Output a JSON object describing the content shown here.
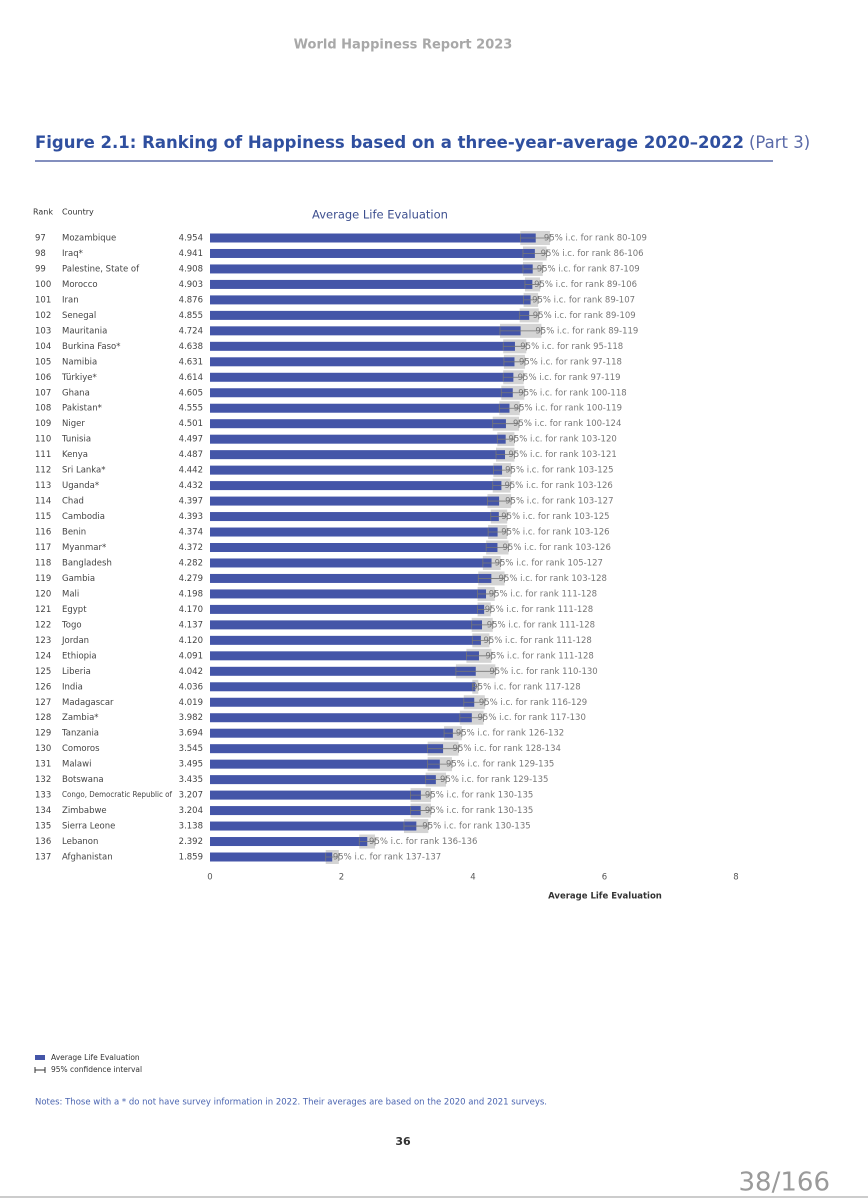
{
  "header": {
    "title": "World Happiness Report 2023"
  },
  "figure": {
    "title": "Figure 2.1: Ranking of Happiness based on a three-year-average 2020–2022",
    "part": "(Part 3)",
    "rank_header": "Rank",
    "country_header": "Country"
  },
  "chart_data": {
    "type": "bar",
    "orientation": "horizontal",
    "title": "Average Life Evaluation",
    "xlabel": "Average Life Evaluation",
    "ranks": [
      97,
      98,
      99,
      100,
      101,
      102,
      103,
      104,
      105,
      106,
      107,
      108,
      109,
      110,
      111,
      112,
      113,
      114,
      115,
      116,
      117,
      118,
      119,
      120,
      121,
      122,
      123,
      124,
      125,
      126,
      127,
      128,
      129,
      130,
      131,
      132,
      133,
      134,
      135,
      136,
      137
    ],
    "categories": [
      "Mozambique",
      "Iraq*",
      "Palestine, State of",
      "Morocco",
      "Iran",
      "Senegal",
      "Mauritania",
      "Burkina Faso*",
      "Namibia",
      "Türkiye*",
      "Ghana",
      "Pakistan*",
      "Niger",
      "Tunisia",
      "Kenya",
      "Sri Lanka*",
      "Uganda*",
      "Chad",
      "Cambodia",
      "Benin",
      "Myanmar*",
      "Bangladesh",
      "Gambia",
      "Mali",
      "Egypt",
      "Togo",
      "Jordan",
      "Ethiopia",
      "Liberia",
      "India",
      "Madagascar",
      "Zambia*",
      "Tanzania",
      "Comoros",
      "Malawi",
      "Botswana",
      "Congo, Democratic Republic of",
      "Zimbabwe",
      "Sierra Leone",
      "Lebanon",
      "Afghanistan"
    ],
    "values": [
      4.954,
      4.941,
      4.908,
      4.903,
      4.876,
      4.855,
      4.724,
      4.638,
      4.631,
      4.614,
      4.605,
      4.555,
      4.501,
      4.497,
      4.487,
      4.442,
      4.432,
      4.397,
      4.393,
      4.374,
      4.372,
      4.282,
      4.279,
      4.198,
      4.17,
      4.137,
      4.12,
      4.091,
      4.042,
      4.036,
      4.019,
      3.982,
      3.694,
      3.545,
      3.495,
      3.435,
      3.207,
      3.204,
      3.138,
      2.392,
      1.859
    ],
    "value_labels": [
      "4.954",
      "4.941",
      "4.908",
      "4.903",
      "4.876",
      "4.855",
      "4.724",
      "4.638",
      "4.631",
      "4.614",
      "4.605",
      "4.555",
      "4.501",
      "4.497",
      "4.487",
      "4.442",
      "4.432",
      "4.397",
      "4.393",
      "4.374",
      "4.372",
      "4.282",
      "4.279",
      "4.198",
      "4.170",
      "4.137",
      "4.120",
      "4.091",
      "4.042",
      "4.036",
      "4.019",
      "3.982",
      "3.694",
      "3.545",
      "3.495",
      "3.435",
      "3.207",
      "3.204",
      "3.138",
      "2.392",
      "1.859"
    ],
    "ci_low": [
      4.72,
      4.76,
      4.76,
      4.79,
      4.77,
      4.71,
      4.41,
      4.46,
      4.47,
      4.46,
      4.43,
      4.4,
      4.3,
      4.37,
      4.35,
      4.31,
      4.3,
      4.22,
      4.27,
      4.23,
      4.2,
      4.15,
      4.08,
      4.07,
      4.07,
      3.98,
      3.99,
      3.9,
      3.74,
      3.99,
      3.86,
      3.8,
      3.56,
      3.31,
      3.31,
      3.28,
      3.05,
      3.05,
      2.95,
      2.27,
      1.76
    ],
    "ci_high": [
      5.17,
      5.12,
      5.06,
      5.02,
      4.99,
      5.0,
      5.04,
      4.81,
      4.79,
      4.77,
      4.78,
      4.71,
      4.7,
      4.63,
      4.63,
      4.58,
      4.57,
      4.58,
      4.52,
      4.52,
      4.54,
      4.42,
      4.48,
      4.33,
      4.27,
      4.3,
      4.25,
      4.28,
      4.34,
      4.08,
      4.18,
      4.16,
      3.83,
      3.78,
      3.68,
      3.59,
      3.36,
      3.36,
      3.32,
      2.51,
      1.96
    ],
    "ci_labels": [
      "95% i.c. for rank 80-109",
      "95% i.c. for rank 86-106",
      "95% i.c. for rank 87-109",
      "95% i.c. for rank 89-106",
      "95% i.c. for rank 89-107",
      "95% i.c. for rank 89-109",
      "95% i.c. for rank 89-119",
      "95% i.c. for rank 95-118",
      "95% i.c. for rank 97-118",
      "95% i.c. for rank 97-119",
      "95% i.c. for rank 100-118",
      "95% i.c. for rank 100-119",
      "95% i.c. for rank 100-124",
      "95% i.c. for rank 103-120",
      "95% i.c. for rank 103-121",
      "95% i.c. for rank 103-125",
      "95% i.c. for rank 103-126",
      "95% i.c. for rank 103-127",
      "95% i.c. for rank 103-125",
      "95% i.c. for rank 103-126",
      "95% i.c. for rank 103-126",
      "95% i.c. for rank 105-127",
      "95% i.c. for rank 103-128",
      "95% i.c. for rank 111-128",
      "95% i.c. for rank 111-128",
      "95% i.c. for rank 111-128",
      "95% i.c. for rank 111-128",
      "95% i.c. for rank 111-128",
      "95% i.c. for rank 110-130",
      "95% i.c. for rank 117-128",
      "95% i.c. for rank 116-129",
      "95% i.c. for rank 117-130",
      "95% i.c. for rank 126-132",
      "95% i.c. for rank 128-134",
      "95% i.c. for rank 129-135",
      "95% i.c. for rank 129-135",
      "95% i.c. for rank 130-135",
      "95% i.c. for rank 130-135",
      "95% i.c. for rank 130-135",
      "95% i.c. for rank 136-136",
      "95% i.c. for rank 137-137"
    ],
    "color": "#4455a8",
    "ci_color": "#d4d4d4",
    "xlim": [
      0,
      8
    ],
    "xticks": [
      0,
      2,
      4,
      6,
      8
    ],
    "legend": [
      "Average Life Evaluation",
      "95% confidence interval"
    ]
  },
  "notes": "Notes: Those with a * do not have survey information in 2022. Their averages are based on the 2020 and 2021 surveys.",
  "page_number": 36,
  "viewer": {
    "page_indicator": "38/166"
  }
}
